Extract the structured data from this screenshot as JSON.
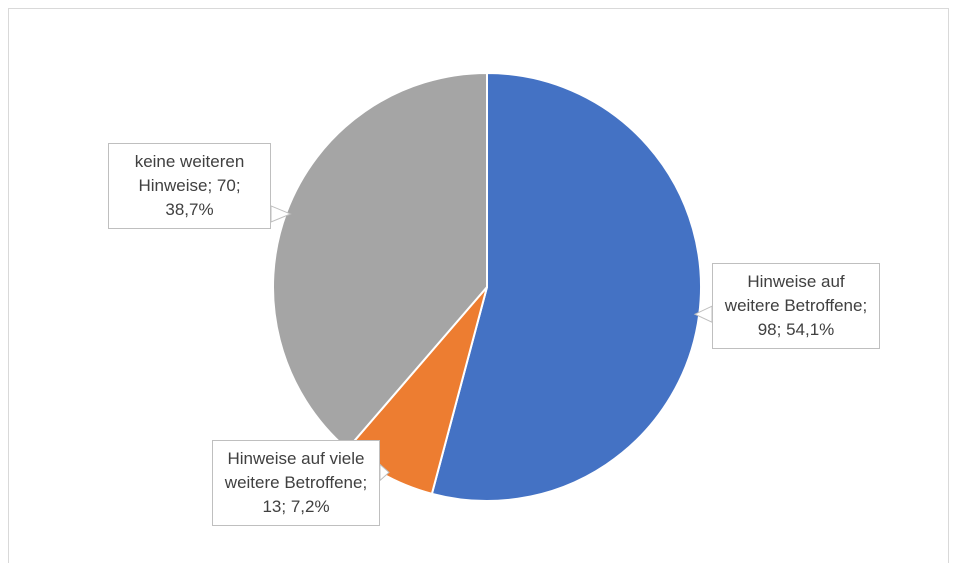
{
  "chart_data": {
    "type": "pie",
    "categories": [
      "Hinweise auf weitere Betroffene",
      "Hinweise auf viele weitere Betroffene",
      "keine weiteren Hinweise"
    ],
    "values": [
      98,
      13,
      70
    ],
    "percentages": [
      54.1,
      7.2,
      38.7
    ],
    "percentage_labels": [
      "54,1%",
      "7,2%",
      "38,7%"
    ],
    "label_separator": "; ",
    "colors": [
      "#4472c4",
      "#ed7d31",
      "#a5a5a5"
    ]
  }
}
